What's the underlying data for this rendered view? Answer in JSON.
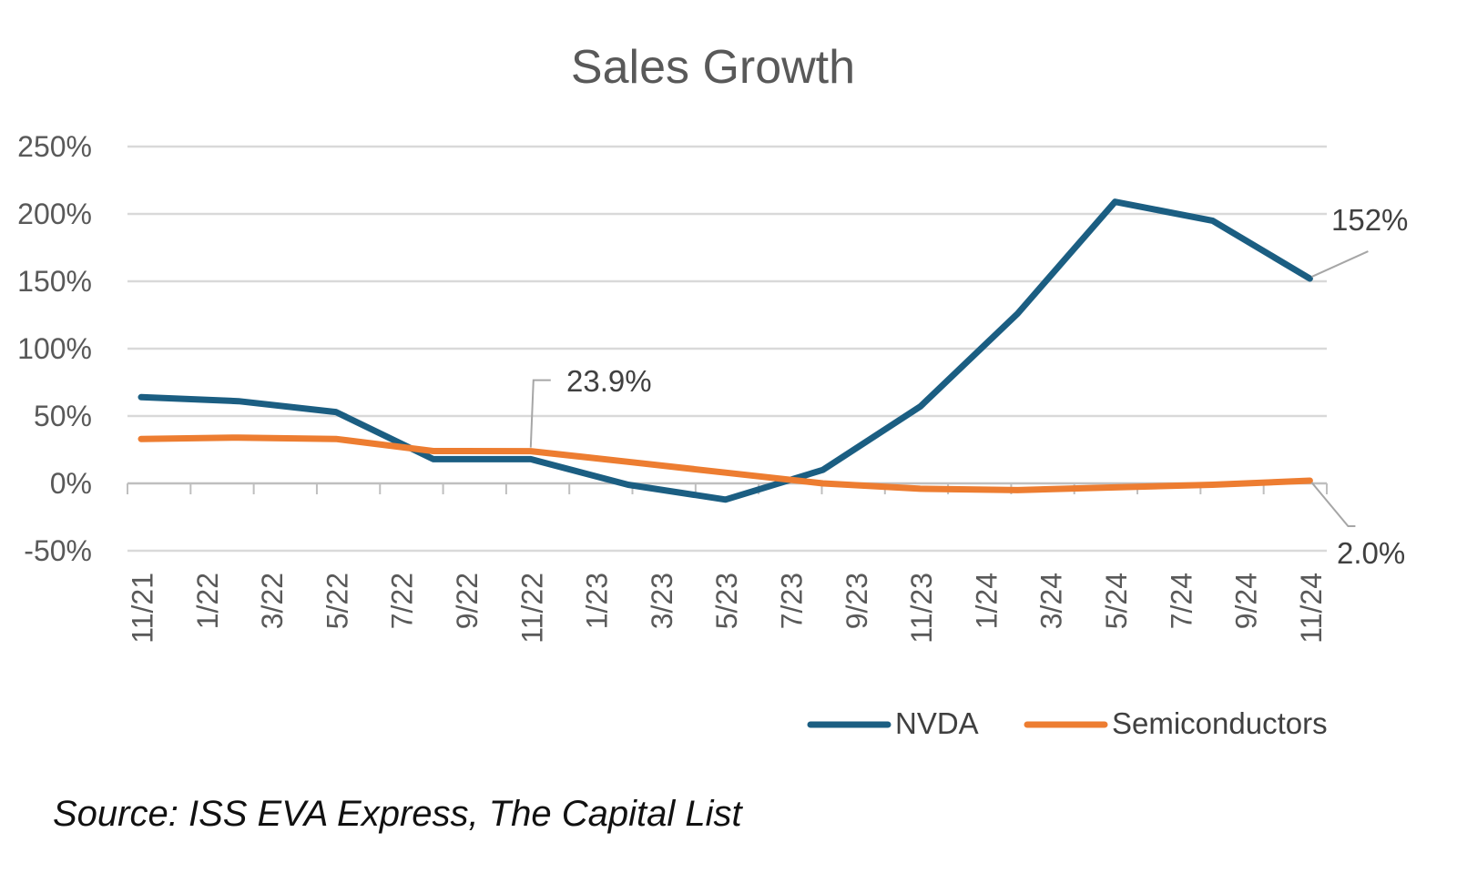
{
  "chart_data": {
    "type": "line",
    "title": "Sales Growth",
    "xlabel": "",
    "ylabel": "",
    "ylim": [
      -50,
      250
    ],
    "y_ticks": [
      "250%",
      "200%",
      "150%",
      "100%",
      "50%",
      "0%",
      "-50%"
    ],
    "y_tick_values": [
      250,
      200,
      150,
      100,
      50,
      0,
      -50
    ],
    "x_tick_labels": [
      "11/21",
      "1/22",
      "3/22",
      "5/22",
      "7/22",
      "9/22",
      "11/22",
      "1/23",
      "3/23",
      "5/23",
      "7/23",
      "9/23",
      "11/23",
      "1/24",
      "3/24",
      "5/24",
      "7/24",
      "9/24",
      "11/24"
    ],
    "point_count": 19,
    "grid": true,
    "legend_position": "bottom-right",
    "series": [
      {
        "name": "NVDA",
        "color": "#1b5e82",
        "points": [
          [
            0,
            64
          ],
          [
            1.5,
            61
          ],
          [
            3,
            53
          ],
          [
            4.5,
            18
          ],
          [
            6,
            18
          ],
          [
            7.5,
            -1
          ],
          [
            9,
            -12
          ],
          [
            10.5,
            10
          ],
          [
            12,
            57
          ],
          [
            13.5,
            126
          ],
          [
            15,
            209
          ],
          [
            16.5,
            195
          ],
          [
            18,
            152
          ]
        ]
      },
      {
        "name": "Semiconductors",
        "color": "#ed7d31",
        "points": [
          [
            0,
            33
          ],
          [
            1.5,
            34
          ],
          [
            3,
            33
          ],
          [
            4.5,
            24
          ],
          [
            6,
            23.9
          ],
          [
            7.5,
            16
          ],
          [
            9,
            8
          ],
          [
            10.5,
            0
          ],
          [
            12,
            -4
          ],
          [
            13.5,
            -5
          ],
          [
            15,
            -3
          ],
          [
            16.5,
            -1
          ],
          [
            18,
            2.0
          ]
        ]
      }
    ],
    "annotations": [
      {
        "text": "23.9%",
        "series": "Semiconductors",
        "x": 6,
        "y": 23.9
      },
      {
        "text": "152%",
        "series": "NVDA",
        "x": 18,
        "y": 152
      },
      {
        "text": "2.0%",
        "series": "Semiconductors",
        "x": 18,
        "y": 2.0
      }
    ],
    "source": "Source: ISS EVA Express, The Capital List"
  }
}
